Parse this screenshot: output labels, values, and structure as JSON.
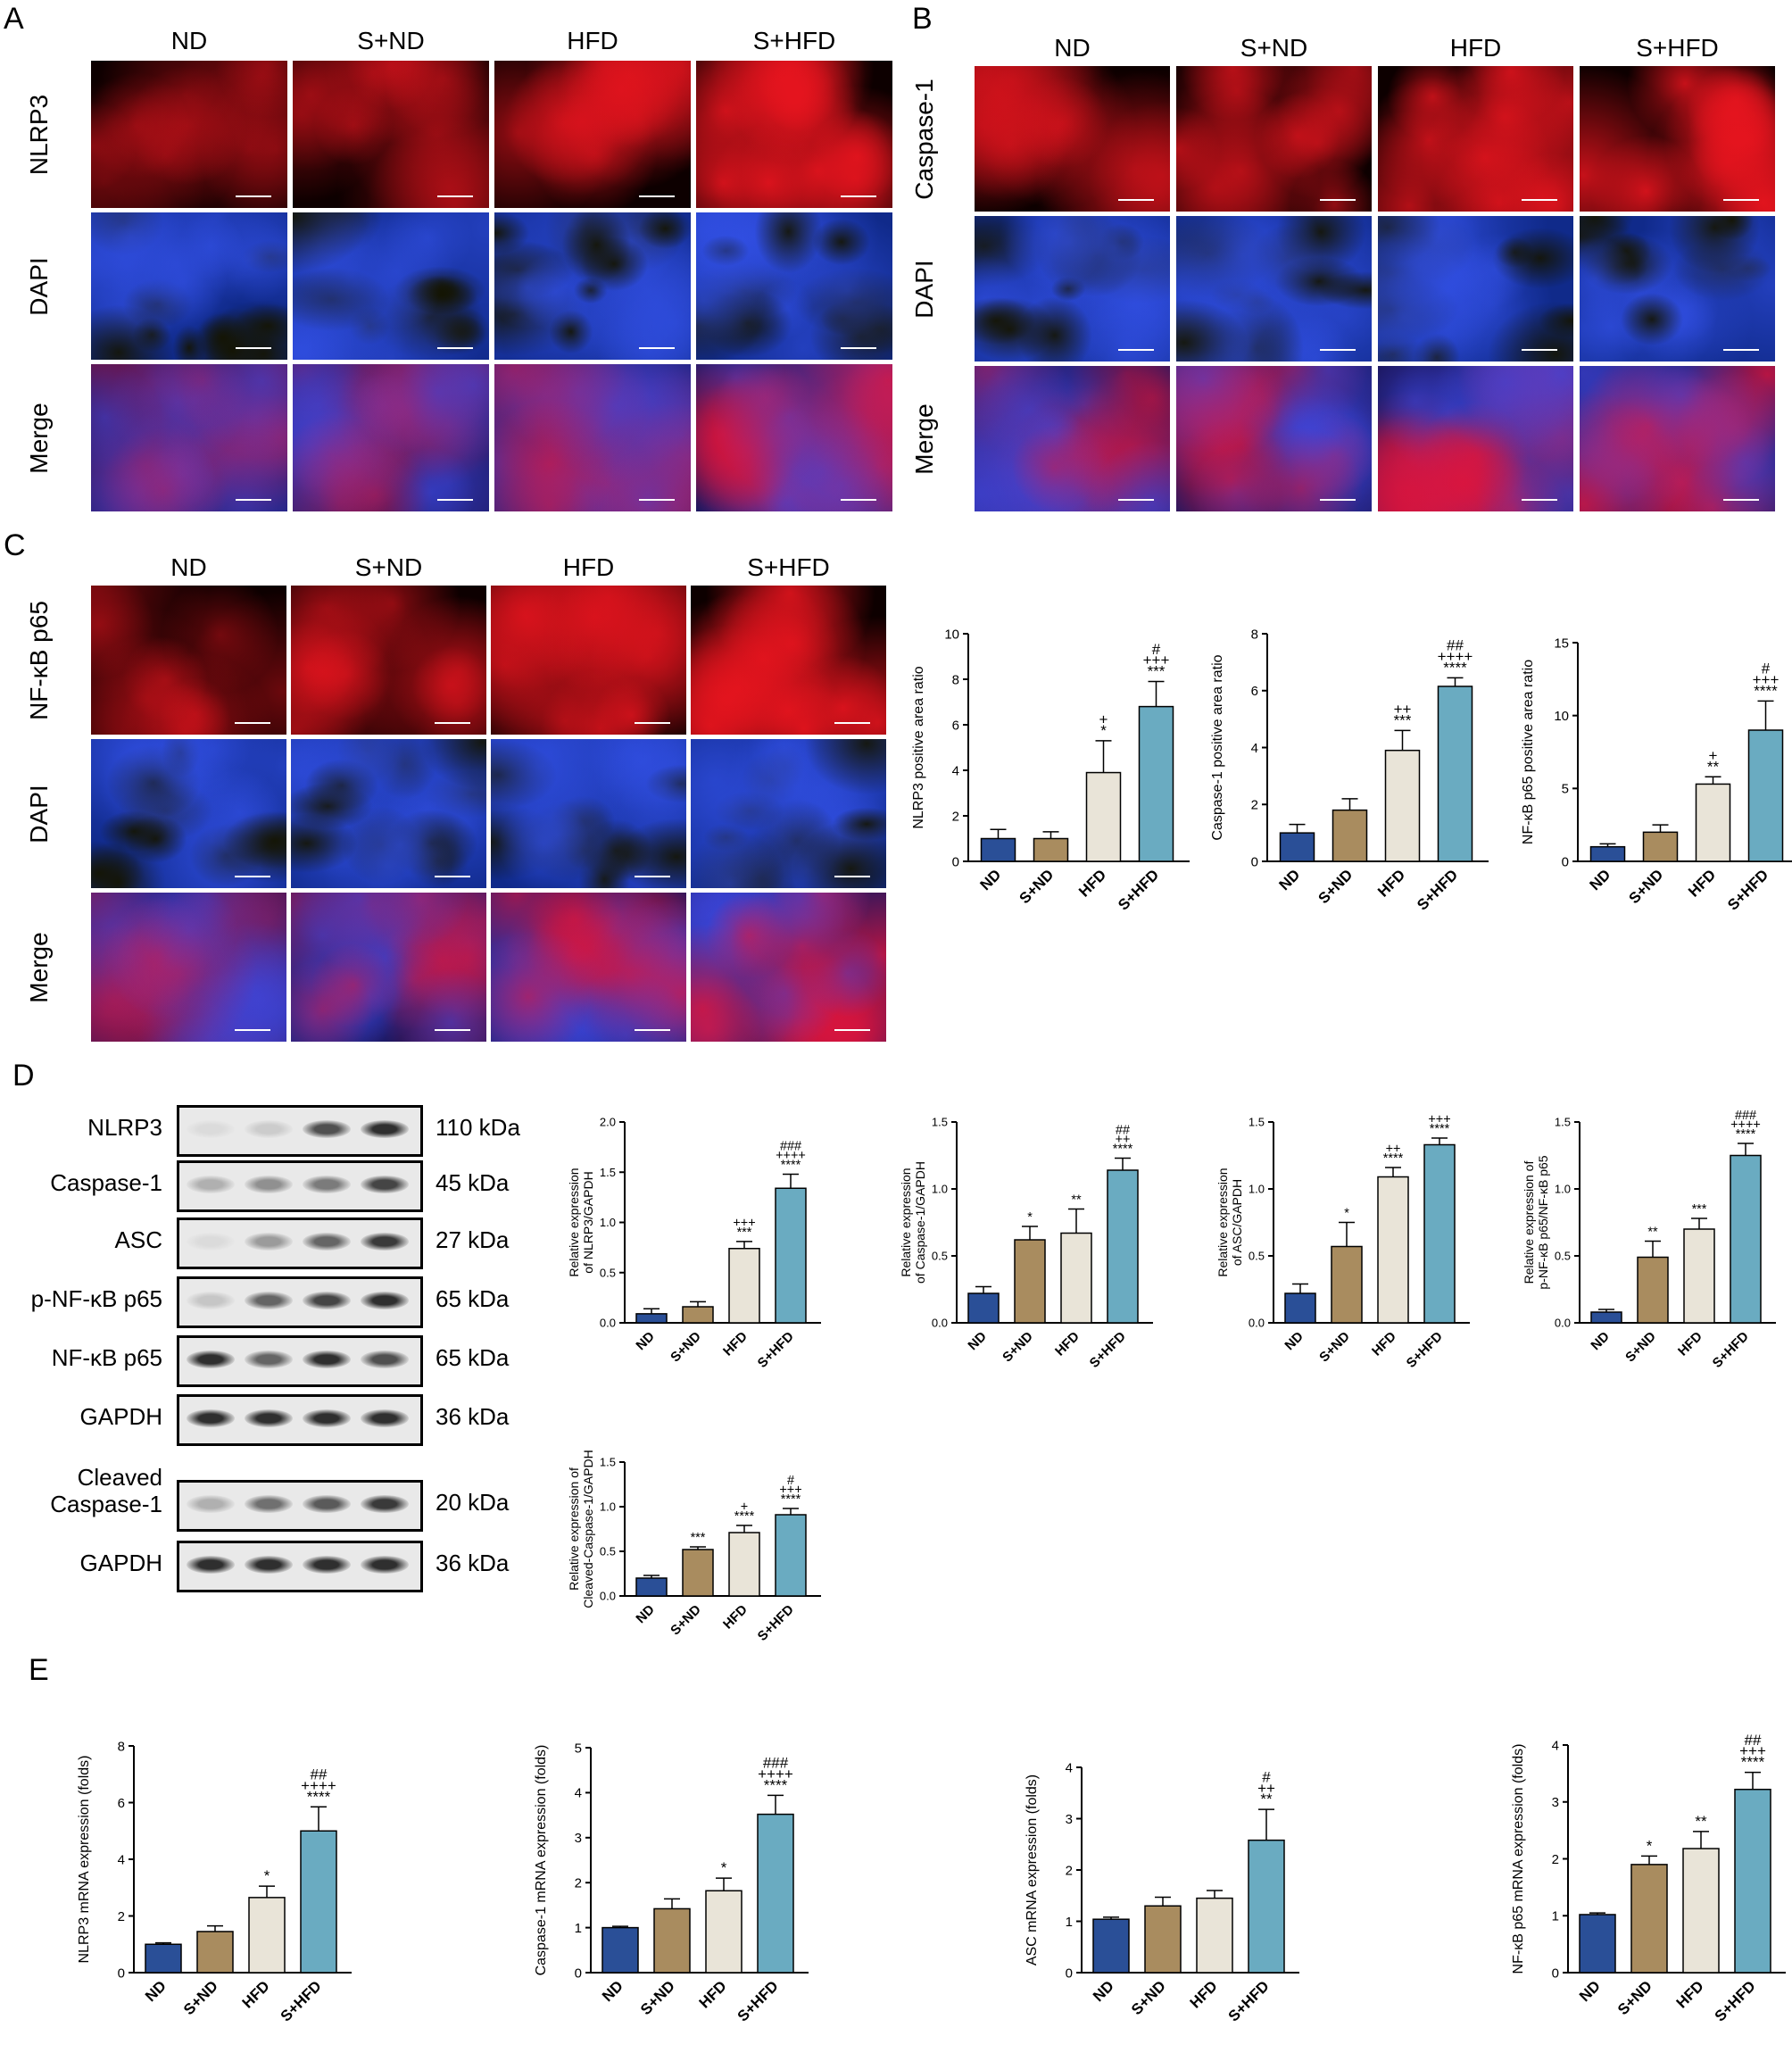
{
  "panels": {
    "A": {
      "letter": "A",
      "columns": [
        "ND",
        "S+ND",
        "HFD",
        "S+HFD"
      ],
      "rows": [
        "NLRP3",
        "DAPI",
        "Merge"
      ]
    },
    "B": {
      "letter": "B",
      "columns": [
        "ND",
        "S+ND",
        "HFD",
        "S+HFD"
      ],
      "rows": [
        "Caspase-1",
        "DAPI",
        "Merge"
      ]
    },
    "C": {
      "letter": "C",
      "columns": [
        "ND",
        "S+ND",
        "HFD",
        "S+HFD"
      ],
      "rows": [
        "NF-κB p65",
        "DAPI",
        "Merge"
      ]
    },
    "D": {
      "letter": "D",
      "blots": [
        {
          "label": "NLRP3",
          "kda": "110 kDa",
          "intensity": [
            0.05,
            0.12,
            0.7,
            0.85
          ]
        },
        {
          "label": "Caspase-1",
          "kda": "45 kDa",
          "intensity": [
            0.25,
            0.4,
            0.5,
            0.75
          ]
        },
        {
          "label": "ASC",
          "kda": "27 kDa",
          "intensity": [
            0.05,
            0.35,
            0.6,
            0.8
          ]
        },
        {
          "label": "p-NF-κB p65",
          "kda": "65 kDa",
          "intensity": [
            0.15,
            0.6,
            0.75,
            0.85
          ]
        },
        {
          "label": "NF-κB p65",
          "kda": "65 kDa",
          "intensity": [
            0.85,
            0.6,
            0.85,
            0.7
          ]
        },
        {
          "label": "GAPDH",
          "kda": "36 kDa",
          "intensity": [
            0.85,
            0.85,
            0.85,
            0.85
          ]
        },
        {
          "label": "Cleaved\nCaspase-1",
          "kda": "20 kDa",
          "intensity": [
            0.25,
            0.55,
            0.65,
            0.8
          ]
        },
        {
          "label": "GAPDH",
          "kda": "36 kDa",
          "intensity": [
            0.85,
            0.85,
            0.85,
            0.85
          ]
        }
      ]
    },
    "E": {
      "letter": "E"
    }
  },
  "colors": {
    "ND": "#2a4f97",
    "S+ND": "#a98c5f",
    "HFD": "#e9e4d8",
    "S+HFD": "#6aabc1"
  },
  "chart_data": [
    {
      "id": "c_nlrp3_area",
      "type": "bar",
      "categories": [
        "ND",
        "S+ND",
        "HFD",
        "S+HFD"
      ],
      "values": [
        1.0,
        1.0,
        3.9,
        6.8
      ],
      "errors": [
        0.4,
        0.3,
        1.4,
        1.1
      ],
      "ylabel": "NLRP3 positive area ratio",
      "ylim": [
        0,
        10
      ],
      "ticks": [
        0,
        2,
        4,
        6,
        8,
        10
      ],
      "annotations": [
        [],
        [],
        [
          "+",
          "*"
        ],
        [
          "#",
          "+++",
          "***"
        ]
      ]
    },
    {
      "id": "c_casp_area",
      "type": "bar",
      "categories": [
        "ND",
        "S+ND",
        "HFD",
        "S+HFD"
      ],
      "values": [
        1.0,
        1.8,
        3.9,
        6.15
      ],
      "errors": [
        0.3,
        0.4,
        0.7,
        0.3
      ],
      "ylabel": "Caspase-1 positive area ratio",
      "ylim": [
        0,
        8
      ],
      "ticks": [
        0,
        2,
        4,
        6,
        8
      ],
      "annotations": [
        [],
        [],
        [
          "++",
          "***"
        ],
        [
          "##",
          "++++",
          "****"
        ]
      ]
    },
    {
      "id": "c_nfkb_area",
      "type": "bar",
      "categories": [
        "ND",
        "S+ND",
        "HFD",
        "S+HFD"
      ],
      "values": [
        1.0,
        2.0,
        5.3,
        9.0
      ],
      "errors": [
        0.2,
        0.5,
        0.5,
        2.0
      ],
      "ylabel": "NF-κB p65 positive area ratio",
      "ylim": [
        0,
        15
      ],
      "ticks": [
        0,
        5,
        10,
        15
      ],
      "annotations": [
        [],
        [],
        [
          "+",
          "**"
        ],
        [
          "#",
          "+++",
          "****"
        ]
      ]
    },
    {
      "id": "c_nlrp3_wb",
      "type": "bar",
      "categories": [
        "ND",
        "S+ND",
        "HFD",
        "S+HFD"
      ],
      "values": [
        0.09,
        0.16,
        0.74,
        1.34
      ],
      "errors": [
        0.05,
        0.05,
        0.07,
        0.14
      ],
      "ylabel": "Relative expression\nof NLRP3/GAPDH",
      "ylim": [
        0,
        2.0
      ],
      "ticks": [
        "0.0",
        "0.5",
        "1.0",
        "1.5",
        "2.0"
      ],
      "annotations": [
        [],
        [],
        [
          "+++",
          "***"
        ],
        [
          "###",
          "++++",
          "****"
        ]
      ]
    },
    {
      "id": "c_casp_wb",
      "type": "bar",
      "categories": [
        "ND",
        "S+ND",
        "HFD",
        "S+HFD"
      ],
      "values": [
        0.22,
        0.62,
        0.67,
        1.14
      ],
      "errors": [
        0.05,
        0.1,
        0.18,
        0.09
      ],
      "ylabel": "Relative expression\nof Caspase-1/GAPDH",
      "ylim": [
        0,
        1.5
      ],
      "ticks": [
        "0.0",
        "0.5",
        "1.0",
        "1.5"
      ],
      "annotations": [
        [],
        [
          "*"
        ],
        [
          "**"
        ],
        [
          "##",
          "++",
          "****"
        ]
      ]
    },
    {
      "id": "c_asc_wb",
      "type": "bar",
      "categories": [
        "ND",
        "S+ND",
        "HFD",
        "S+HFD"
      ],
      "values": [
        0.22,
        0.57,
        1.09,
        1.33
      ],
      "errors": [
        0.07,
        0.18,
        0.07,
        0.05
      ],
      "ylabel": "Relative expression\nof ASC/GAPDH",
      "ylim": [
        0,
        1.5
      ],
      "ticks": [
        "0.0",
        "0.5",
        "1.0",
        "1.5"
      ],
      "annotations": [
        [],
        [
          "*"
        ],
        [
          "++",
          "****"
        ],
        [
          "+++",
          "****"
        ]
      ]
    },
    {
      "id": "c_pnfkb_wb",
      "type": "bar",
      "categories": [
        "ND",
        "S+ND",
        "HFD",
        "S+HFD"
      ],
      "values": [
        0.08,
        0.49,
        0.7,
        1.25
      ],
      "errors": [
        0.02,
        0.12,
        0.08,
        0.09
      ],
      "ylabel": "Relative expression of\np-NF-κB p65/NF-κB p65",
      "ylim": [
        0,
        1.5
      ],
      "ticks": [
        "0.0",
        "0.5",
        "1.0",
        "1.5"
      ],
      "annotations": [
        [],
        [
          "**"
        ],
        [
          "***"
        ],
        [
          "###",
          "++++",
          "****"
        ]
      ]
    },
    {
      "id": "c_ccasp_wb",
      "type": "bar",
      "categories": [
        "ND",
        "S+ND",
        "HFD",
        "S+HFD"
      ],
      "values": [
        0.2,
        0.52,
        0.71,
        0.91
      ],
      "errors": [
        0.03,
        0.03,
        0.08,
        0.07
      ],
      "ylabel": "Relative expression of\nCleaved-Caspase-1/GAPDH",
      "ylim": [
        0,
        1.5
      ],
      "ticks": [
        "0.0",
        "0.5",
        "1.0",
        "1.5"
      ],
      "annotations": [
        [],
        [
          "***"
        ],
        [
          "+",
          "****"
        ],
        [
          "#",
          "+++",
          "****"
        ]
      ]
    },
    {
      "id": "c_nlrp3_mrna",
      "type": "bar",
      "categories": [
        "ND",
        "S+ND",
        "HFD",
        "S+HFD"
      ],
      "values": [
        1.0,
        1.45,
        2.65,
        5.0
      ],
      "errors": [
        0.05,
        0.2,
        0.4,
        0.85
      ],
      "ylabel": "NLRP3 mRNA expression (folds)",
      "ylim": [
        0,
        8
      ],
      "ticks": [
        0,
        2,
        4,
        6,
        8
      ],
      "annotations": [
        [],
        [],
        [
          "*"
        ],
        [
          "##",
          "++++",
          "****"
        ]
      ]
    },
    {
      "id": "c_casp_mrna",
      "type": "bar",
      "categories": [
        "ND",
        "S+ND",
        "HFD",
        "S+HFD"
      ],
      "values": [
        1.0,
        1.42,
        1.82,
        3.52
      ],
      "errors": [
        0.03,
        0.22,
        0.28,
        0.42
      ],
      "ylabel": "Caspase-1 mRNA expression (folds)",
      "ylim": [
        0,
        5
      ],
      "ticks": [
        0,
        1,
        2,
        3,
        4,
        5
      ],
      "annotations": [
        [],
        [],
        [
          "*"
        ],
        [
          "###",
          "++++",
          "****"
        ]
      ]
    },
    {
      "id": "c_asc_mrna",
      "type": "bar",
      "categories": [
        "ND",
        "S+ND",
        "HFD",
        "S+HFD"
      ],
      "values": [
        1.04,
        1.3,
        1.45,
        2.58
      ],
      "errors": [
        0.04,
        0.17,
        0.15,
        0.6
      ],
      "ylabel": "ASC mRNA expression (folds)",
      "ylim": [
        0,
        4
      ],
      "ticks": [
        0,
        1,
        2,
        3,
        4
      ],
      "annotations": [
        [],
        [],
        [],
        [
          "#",
          "++",
          "**"
        ]
      ]
    },
    {
      "id": "c_nfkb_mrna",
      "type": "bar",
      "categories": [
        "ND",
        "S+ND",
        "HFD",
        "S+HFD"
      ],
      "values": [
        1.02,
        1.9,
        2.18,
        3.22
      ],
      "errors": [
        0.03,
        0.15,
        0.3,
        0.3
      ],
      "ylabel": "NF-κB p65 mRNA expression (folds)",
      "ylim": [
        0,
        4
      ],
      "ticks": [
        0,
        1,
        2,
        3,
        4
      ],
      "annotations": [
        [],
        [
          "*"
        ],
        [
          "**"
        ],
        [
          "##",
          "+++",
          "****"
        ]
      ]
    }
  ]
}
